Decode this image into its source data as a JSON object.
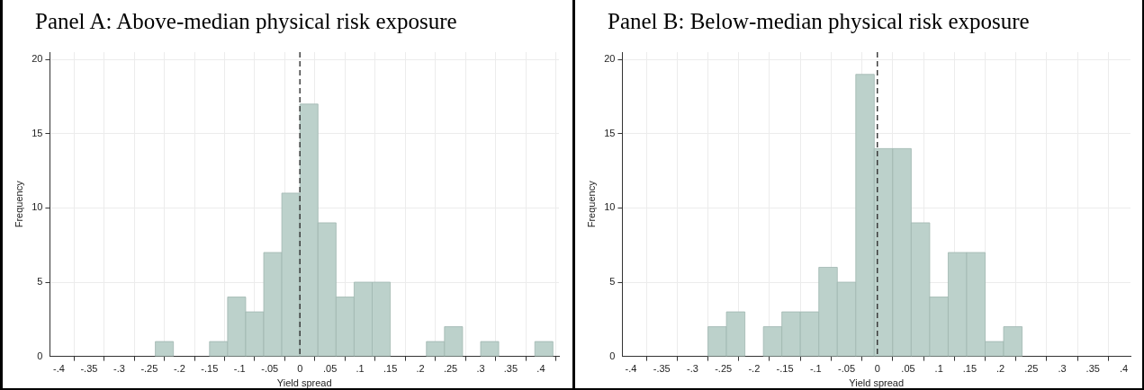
{
  "chart_data": [
    {
      "type": "histogram",
      "title": "Panel A: Above-median physical risk exposure",
      "xlabel": "Yield spread",
      "ylabel": "Frequency",
      "color": "#bcd1cb",
      "bins": [
        -0.24,
        -0.21,
        -0.18,
        -0.15,
        -0.12,
        -0.09,
        -0.06,
        -0.03,
        0,
        0.03,
        0.06,
        0.09,
        0.12,
        0.15,
        0.18,
        0.21,
        0.24,
        0.27,
        0.3,
        0.33,
        0.36,
        0.39,
        0.42
      ],
      "values": [
        1,
        0,
        0,
        1,
        4,
        3,
        7,
        11,
        17,
        9,
        4,
        5,
        5,
        0,
        0,
        1,
        2,
        0,
        1,
        0,
        0,
        1
      ],
      "xlim": [
        -0.415,
        0.43
      ],
      "ylim": [
        0,
        20.5
      ],
      "xticks": [
        {
          "value": -0.4,
          "label": "-.4"
        },
        {
          "value": -0.35,
          "label": "-.35"
        },
        {
          "value": -0.3,
          "label": "-.3"
        },
        {
          "value": -0.25,
          "label": "-.25"
        },
        {
          "value": -0.2,
          "label": "-.2"
        },
        {
          "value": -0.15,
          "label": "-.15"
        },
        {
          "value": -0.1,
          "label": "-.1"
        },
        {
          "value": -0.05,
          "label": "-.05"
        },
        0,
        {
          "value": 0.05,
          "label": ".05"
        },
        {
          "value": 0.1,
          "label": ".1"
        },
        {
          "value": 0.15,
          "label": ".15"
        },
        {
          "value": 0.2,
          "label": ".2"
        },
        {
          "value": 0.25,
          "label": ".25"
        },
        {
          "value": 0.3,
          "label": ".3"
        },
        {
          "value": 0.35,
          "label": ".35"
        },
        {
          "value": 0.4,
          "label": ".4"
        }
      ],
      "yticks": [
        0,
        5,
        10,
        15,
        20
      ],
      "grid": true,
      "ref_lines": [
        {
          "axis": "x",
          "value": 0,
          "color": "#333333",
          "line_style": "dashed"
        }
      ]
    },
    {
      "type": "histogram",
      "title": "Panel B: Below-median physical risk exposure",
      "xlabel": "Yield spread",
      "ylabel": "Frequency",
      "color": "#bcd1cb",
      "bins": [
        -0.275,
        -0.245,
        -0.215,
        -0.185,
        -0.155,
        -0.125,
        -0.095,
        -0.065,
        -0.035,
        -0.005,
        0.025,
        0.055,
        0.085,
        0.115,
        0.145,
        0.175,
        0.205,
        0.235
      ],
      "values": [
        2,
        3,
        0,
        2,
        3,
        3,
        6,
        5,
        19,
        14,
        14,
        9,
        4,
        7,
        7,
        1,
        2
      ],
      "xlim": [
        -0.414,
        0.411
      ],
      "ylim": [
        0,
        20.5
      ],
      "xticks": [
        {
          "value": -0.4,
          "label": "-.4"
        },
        {
          "value": -0.35,
          "label": "-.35"
        },
        {
          "value": -0.3,
          "label": "-.3"
        },
        {
          "value": -0.25,
          "label": "-.25"
        },
        {
          "value": -0.2,
          "label": "-.2"
        },
        {
          "value": -0.15,
          "label": "-.15"
        },
        {
          "value": -0.1,
          "label": "-.1"
        },
        {
          "value": -0.05,
          "label": "-.05"
        },
        0,
        {
          "value": 0.05,
          "label": ".05"
        },
        {
          "value": 0.1,
          "label": ".1"
        },
        {
          "value": 0.15,
          "label": ".15"
        },
        {
          "value": 0.2,
          "label": ".2"
        },
        {
          "value": 0.25,
          "label": ".25"
        },
        {
          "value": 0.3,
          "label": ".3"
        },
        {
          "value": 0.35,
          "label": ".35"
        },
        {
          "value": 0.4,
          "label": ".4"
        }
      ],
      "yticks": [
        0,
        5,
        10,
        15,
        20
      ],
      "grid": true,
      "ref_lines": [
        {
          "axis": "x",
          "value": 0,
          "color": "#333333",
          "line_style": "dashed"
        }
      ]
    }
  ]
}
